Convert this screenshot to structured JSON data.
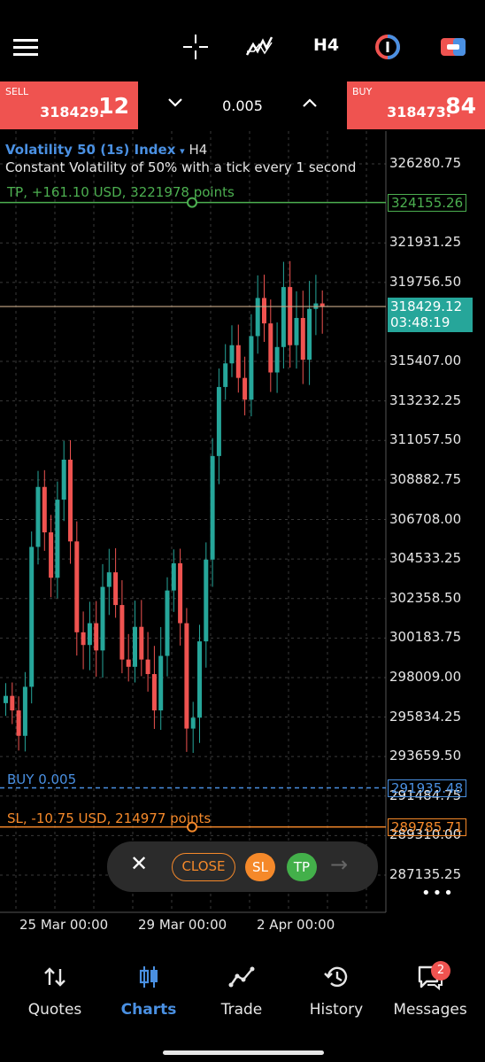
{
  "toolbar": {
    "timeframe": "H4"
  },
  "trade_panel": {
    "sell_label": "SELL",
    "sell_price_main": "318429.",
    "sell_price_big": "12",
    "buy_label": "BUY",
    "buy_price_main": "318473.",
    "buy_price_big": "84",
    "volume": "0.005"
  },
  "chart": {
    "symbol": "Volatility 50 (1s) Index",
    "symbol_arrow": "▾",
    "timeframe": "H4",
    "description": "Constant Volatility of 50% with a tick every 1 second",
    "tp_label": "TP, +161.10 USD, 3221978 points",
    "buy_label": "BUY 0.005",
    "sl_label": "SL, -10.75 USD, 214977 points",
    "y_ticks": [
      "326280.75",
      "321931.25",
      "319756.50",
      "315407.00",
      "313232.25",
      "311057.50",
      "308882.75",
      "306708.00",
      "304533.25",
      "302358.50",
      "300183.75",
      "298009.00",
      "295834.25",
      "293659.50",
      "291484.75",
      "289310.00",
      "287135.25"
    ],
    "x_ticks": [
      "25 Mar 00:00",
      "29 Mar 00:00",
      "2 Apr 00:00"
    ],
    "tp_price": "324155.26",
    "current_price": "318429.12",
    "countdown": "03:48:19",
    "entry_price": "291935.48",
    "sl_price": "289785.71",
    "colors": {
      "bull": "#26a69a",
      "bear": "#ef5350",
      "tp": "#4caf50",
      "sl": "#f5892a",
      "entry": "#4a90e2",
      "current": "#26a69a"
    }
  },
  "quick_bar": {
    "close_x": "✕",
    "close_label": "CLOSE",
    "sl_label": "SL",
    "tp_label": "TP",
    "arrow": "→",
    "more": "•••"
  },
  "nav": {
    "items": [
      {
        "label": "Quotes",
        "icon": "quotes-icon"
      },
      {
        "label": "Charts",
        "icon": "charts-icon"
      },
      {
        "label": "Trade",
        "icon": "trade-icon"
      },
      {
        "label": "History",
        "icon": "history-icon"
      },
      {
        "label": "Messages",
        "icon": "messages-icon"
      }
    ],
    "messages_badge": "2"
  }
}
